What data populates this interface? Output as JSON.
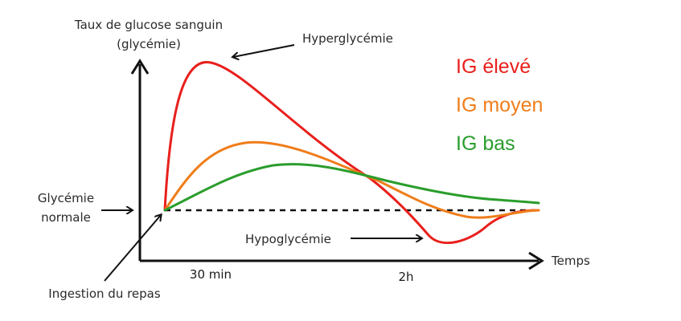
{
  "chart_data": {
    "type": "line",
    "ylabel_line1": "Taux de glucose sanguin",
    "ylabel_line2": "(glycémie)",
    "xlabel": "Temps",
    "x_ticks": [
      "30 min",
      "2h"
    ],
    "baseline_label_line1": "Glycémie",
    "baseline_label_line2": "normale",
    "annotations": {
      "hyper": "Hyperglycémie",
      "hypo": "Hypoglycémie",
      "meal": "Ingestion du repas"
    },
    "series": [
      {
        "name": "IG élevé",
        "color": "#e8201c"
      },
      {
        "name": "IG moyen",
        "color": "#ef7d1a"
      },
      {
        "name": "IG bas",
        "color": "#2a9d2c"
      }
    ],
    "baseline_style": "dashed",
    "legend_position": "top-right"
  }
}
